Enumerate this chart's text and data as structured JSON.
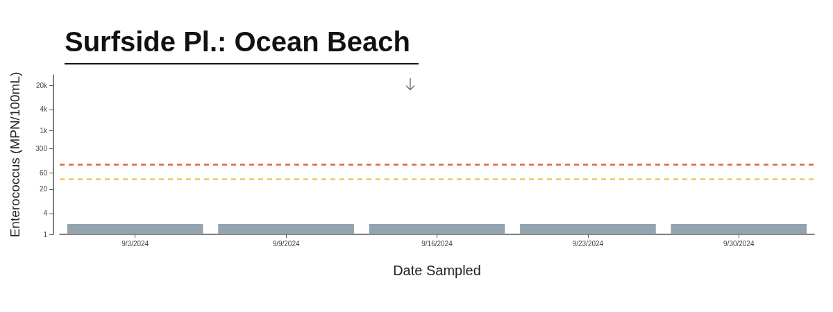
{
  "chart_data": {
    "type": "bar",
    "title": "Surfside Pl.: Ocean Beach",
    "xlabel": "Date Sampled",
    "ylabel": "Enterococcus (MPN/100mL)",
    "categories": [
      "9/3/2024",
      "9/9/2024",
      "9/16/2024",
      "9/23/2024",
      "9/30/2024"
    ],
    "values": [
      2,
      2,
      2,
      2,
      2
    ],
    "color": "#93a4ae",
    "log": true,
    "ylim": [
      1,
      40000
    ],
    "yticks": [
      1,
      4,
      20,
      60,
      300,
      {
        "value": 1000,
        "label": "1k"
      },
      {
        "value": 4000,
        "label": "4k"
      },
      {
        "value": 20000,
        "label": "20k"
      }
    ],
    "ref_lines": [
      {
        "axis": "y",
        "value": 104,
        "color": "#e3623f",
        "line_style": "dashed"
      },
      {
        "axis": "y",
        "value": 40,
        "color": "#f2c75c",
        "line_style": "dashed"
      }
    ]
  }
}
